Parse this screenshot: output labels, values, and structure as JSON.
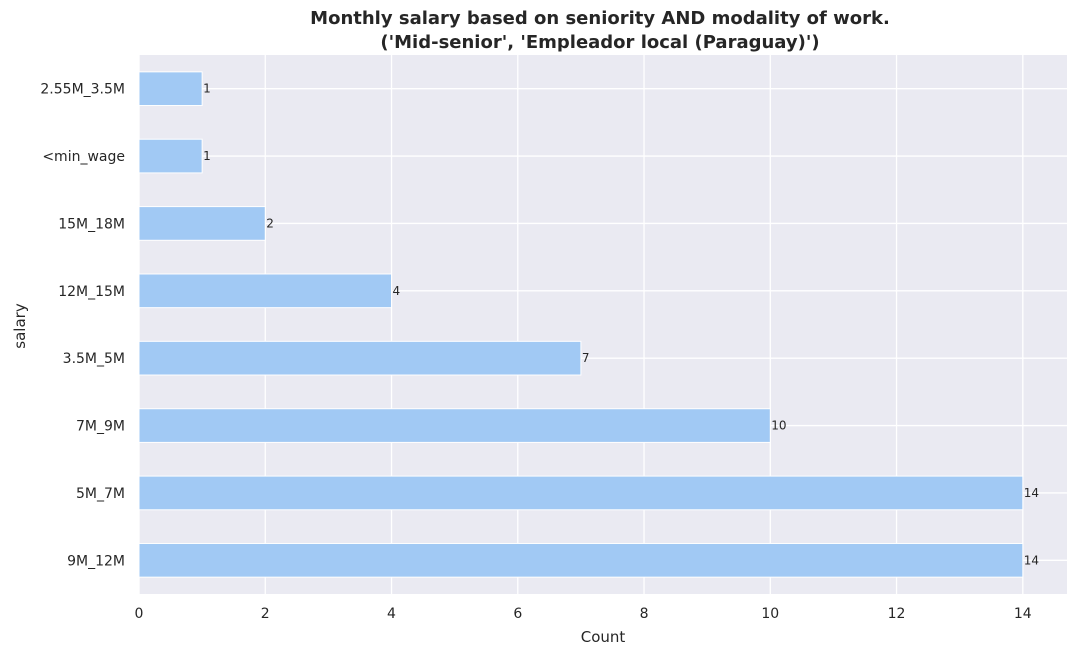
{
  "chart_data": {
    "type": "bar",
    "orientation": "horizontal",
    "title": "Monthly salary based on seniority AND modality of work.",
    "subtitle": "('Mid-senior', 'Empleador local (Paraguay)')",
    "xlabel": "Count",
    "ylabel": "salary",
    "categories": [
      "2.55M_3.5M",
      "<min_wage",
      "15M_18M",
      "12M_15M",
      "3.5M_5M",
      "7M_9M",
      "5M_7M",
      "9M_12M"
    ],
    "values": [
      1,
      1,
      2,
      4,
      7,
      10,
      14,
      14
    ],
    "data_labels": [
      "1",
      "1",
      "2",
      "4",
      "7",
      "10",
      "14",
      "14"
    ],
    "xlim": [
      0,
      14.7
    ],
    "x_ticks": [
      0,
      2,
      4,
      6,
      8,
      10,
      12,
      14
    ],
    "x_tick_labels": [
      "0",
      "2",
      "4",
      "6",
      "8",
      "10",
      "12",
      "14"
    ],
    "grid": true,
    "bar_color": "#a1c9f4",
    "plot_background": "#eaeaf2"
  }
}
